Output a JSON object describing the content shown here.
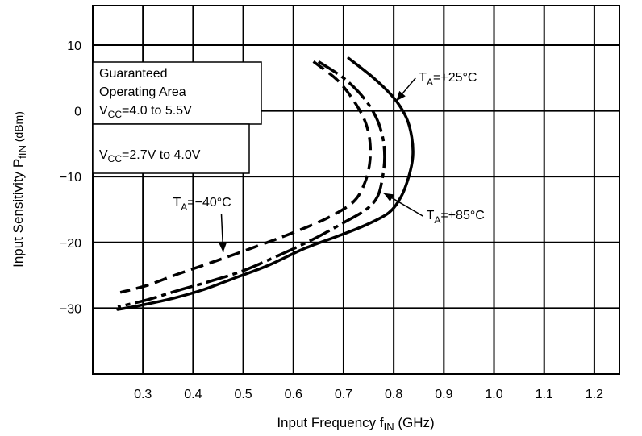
{
  "chart_data": {
    "type": "line",
    "title": "",
    "xlabel": {
      "main": "Input Frequency f",
      "sub": "IN",
      "unit": " (GHz)"
    },
    "ylabel": {
      "main": "Input Sensitivity P",
      "sub": "fIN",
      "unit": " (dBm)"
    },
    "xlim": [
      0.2,
      1.25
    ],
    "ylim": [
      -40,
      16
    ],
    "xticks": [
      "0.3",
      "0.4",
      "0.5",
      "0.6",
      "0.7",
      "0.8",
      "0.9",
      "1.0",
      "1.1",
      "1.2"
    ],
    "yticks": [
      "10",
      "0",
      "−10",
      "−20",
      "−30"
    ],
    "grid": true,
    "series": [
      {
        "name": "TA=+25°C",
        "style": "solid",
        "points": [
          [
            0.71,
            8
          ],
          [
            0.76,
            5
          ],
          [
            0.8,
            2
          ],
          [
            0.825,
            -1
          ],
          [
            0.836,
            -4
          ],
          [
            0.838,
            -7
          ],
          [
            0.83,
            -10
          ],
          [
            0.815,
            -13
          ],
          [
            0.79,
            -15.5
          ],
          [
            0.74,
            -17.5
          ],
          [
            0.69,
            -19
          ],
          [
            0.62,
            -21
          ],
          [
            0.55,
            -23.5
          ],
          [
            0.48,
            -25.5
          ],
          [
            0.42,
            -27.2
          ],
          [
            0.36,
            -28.5
          ],
          [
            0.3,
            -29.5
          ],
          [
            0.25,
            -30.2
          ]
        ]
      },
      {
        "name": "TA=+85°C",
        "style": "dash-dot",
        "points": [
          [
            0.65,
            7.5
          ],
          [
            0.7,
            5
          ],
          [
            0.74,
            2
          ],
          [
            0.765,
            -1
          ],
          [
            0.778,
            -4
          ],
          [
            0.782,
            -7
          ],
          [
            0.778,
            -10
          ],
          [
            0.768,
            -13
          ],
          [
            0.745,
            -15
          ],
          [
            0.7,
            -17
          ],
          [
            0.64,
            -19.5
          ],
          [
            0.57,
            -22
          ],
          [
            0.5,
            -24.3
          ],
          [
            0.43,
            -26
          ],
          [
            0.37,
            -27.3
          ],
          [
            0.31,
            -28.7
          ],
          [
            0.25,
            -29.8
          ]
        ]
      },
      {
        "name": "TA=−40°C",
        "style": "dashed",
        "points": [
          [
            0.64,
            7.5
          ],
          [
            0.69,
            4.5
          ],
          [
            0.725,
            1
          ],
          [
            0.745,
            -2
          ],
          [
            0.753,
            -5
          ],
          [
            0.752,
            -8
          ],
          [
            0.742,
            -11
          ],
          [
            0.72,
            -13.8
          ],
          [
            0.67,
            -16.2
          ],
          [
            0.6,
            -18.5
          ],
          [
            0.53,
            -20.5
          ],
          [
            0.45,
            -22.7
          ],
          [
            0.37,
            -24.8
          ],
          [
            0.31,
            -26.5
          ],
          [
            0.255,
            -27.6
          ]
        ]
      }
    ],
    "annotations": [
      {
        "series_label": {
          "main": "T",
          "sub": "A",
          "rest": "=+25°C"
        },
        "x": 0.85,
        "y": 4.5,
        "arrow_to": [
          0.805,
          1.5
        ]
      },
      {
        "series_label": {
          "main": "T",
          "sub": "A",
          "rest": "=+85°C"
        },
        "x": 0.865,
        "y": -16.5,
        "arrow_to": [
          0.78,
          -12.5
        ]
      },
      {
        "series_label": {
          "main": "T",
          "sub": "A",
          "rest": "=−40°C"
        },
        "x": 0.36,
        "y": -14.5,
        "arrow_to": [
          0.46,
          -21.5
        ]
      }
    ],
    "regions": [
      {
        "lines": [
          {
            "main": "Guaranteed"
          },
          {
            "main": "Operating Area"
          },
          {
            "main": "V",
            "sub": "CC",
            "rest": "=4.0 to 5.5V"
          }
        ]
      },
      {
        "lines": [
          {
            "main": "V",
            "sub": "CC",
            "rest": "=2.7V to 4.0V"
          }
        ]
      }
    ]
  }
}
